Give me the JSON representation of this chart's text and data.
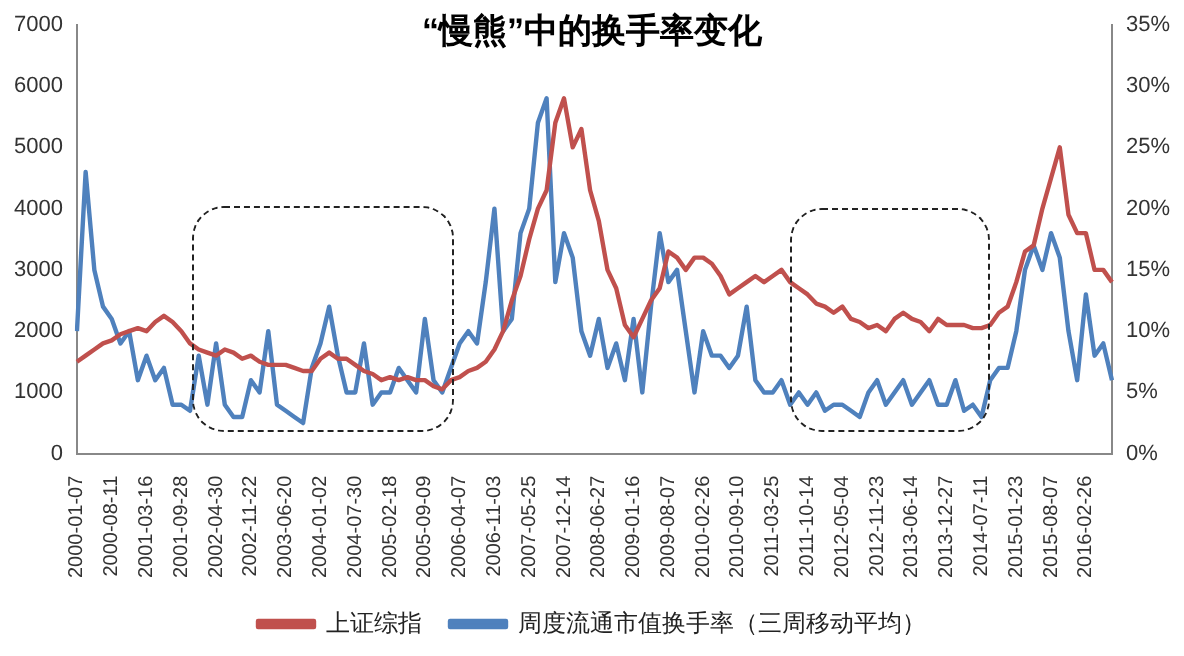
{
  "chart_data": {
    "type": "line",
    "title": "“慢熊”中的换手率变化",
    "categories": [
      "2000-01-07",
      null,
      null,
      null,
      "2000-08-11",
      null,
      null,
      null,
      "2001-03-16",
      null,
      null,
      null,
      "2001-09-28",
      null,
      null,
      null,
      "2002-04-30",
      null,
      null,
      null,
      "2002-11-22",
      null,
      null,
      null,
      "2003-06-20",
      null,
      null,
      null,
      "2004-01-02",
      null,
      null,
      null,
      "2004-07-30",
      null,
      null,
      null,
      "2005-02-18",
      null,
      null,
      null,
      "2005-09-09",
      null,
      null,
      null,
      "2006-04-07",
      null,
      null,
      null,
      "2006-11-03",
      null,
      null,
      null,
      "2007-05-25",
      null,
      null,
      null,
      "2007-12-14",
      null,
      null,
      null,
      "2008-06-27",
      null,
      null,
      null,
      "2009-01-16",
      null,
      null,
      null,
      "2009-08-07",
      null,
      null,
      null,
      "2010-02-26",
      null,
      null,
      null,
      "2010-09-10",
      null,
      null,
      null,
      "2011-03-25",
      null,
      null,
      null,
      "2011-10-14",
      null,
      null,
      null,
      "2012-05-04",
      null,
      null,
      null,
      "2012-11-23",
      null,
      null,
      null,
      "2013-06-14",
      null,
      null,
      null,
      "2013-12-27",
      null,
      null,
      null,
      "2014-07-11",
      null,
      null,
      null,
      "2015-01-23",
      null,
      null,
      null,
      "2015-08-07",
      null,
      null,
      null,
      "2016-02-26",
      null,
      null,
      null
    ],
    "series": [
      {
        "name": "上证综指",
        "color": "#c0504d",
        "values": [
          1500,
          1600,
          1700,
          1800,
          1850,
          1950,
          2000,
          2050,
          2000,
          2150,
          2250,
          2150,
          2000,
          1800,
          1700,
          1650,
          1600,
          1700,
          1650,
          1550,
          1600,
          1500,
          1450,
          1450,
          1450,
          1400,
          1350,
          1350,
          1550,
          1650,
          1550,
          1550,
          1450,
          1350,
          1300,
          1200,
          1250,
          1200,
          1250,
          1200,
          1200,
          1100,
          1050,
          1200,
          1250,
          1350,
          1400,
          1500,
          1700,
          2000,
          2500,
          2900,
          3500,
          4000,
          4300,
          5400,
          5800,
          5000,
          5300,
          4300,
          3800,
          3000,
          2700,
          2100,
          1900,
          2200,
          2500,
          2700,
          3300,
          3200,
          3000,
          3200,
          3200,
          3100,
          2900,
          2600,
          2700,
          2800,
          2900,
          2800,
          2900,
          3000,
          2800,
          2700,
          2600,
          2450,
          2400,
          2300,
          2400,
          2200,
          2150,
          2050,
          2100,
          2000,
          2200,
          2300,
          2200,
          2150,
          2000,
          2200,
          2100,
          2100,
          2100,
          2050,
          2050,
          2100,
          2300,
          2400,
          2800,
          3300,
          3400,
          4000,
          4500,
          5000,
          3900,
          3600,
          3600,
          3000,
          3000,
          2800
        ]
      },
      {
        "name": "周度流通市值换手率（三周移动平均）",
        "color": "#4f81bd",
        "axis": "y2",
        "values": [
          10,
          23,
          15,
          12,
          11,
          9,
          10,
          6,
          8,
          6,
          7,
          4,
          4,
          3.5,
          8,
          4,
          9,
          4,
          3,
          3,
          6,
          5,
          10,
          4,
          3.5,
          3,
          2.5,
          7,
          9,
          12,
          8,
          5,
          5,
          9,
          4,
          5,
          5,
          7,
          6,
          5,
          11,
          6,
          5,
          7,
          9,
          10,
          9,
          14,
          20,
          10,
          11,
          18,
          20,
          27,
          29,
          14,
          18,
          16,
          10,
          8,
          11,
          7,
          9,
          6,
          11,
          5,
          12,
          18,
          14,
          15,
          10,
          5,
          10,
          8,
          8,
          7,
          8,
          12,
          6,
          5,
          5,
          6,
          4,
          5,
          4,
          5,
          3.5,
          4,
          4,
          3.5,
          3,
          5,
          6,
          4,
          5,
          6,
          4,
          5,
          6,
          4,
          4,
          6,
          3.5,
          4,
          3,
          6,
          7,
          7,
          10,
          15,
          17,
          15,
          18,
          16,
          10,
          6,
          13,
          8,
          9,
          6
        ]
      }
    ],
    "ylim": [
      0,
      7000
    ],
    "yticks": [
      0,
      1000,
      2000,
      3000,
      4000,
      5000,
      6000,
      7000
    ],
    "y2lim": [
      0,
      35
    ],
    "y2ticks": [
      {
        "value": 0,
        "label": "0%"
      },
      {
        "value": 5,
        "label": "5%"
      },
      {
        "value": 10,
        "label": "10%"
      },
      {
        "value": 15,
        "label": "15%"
      },
      {
        "value": 20,
        "label": "20%"
      },
      {
        "value": 25,
        "label": "25%"
      },
      {
        "value": 30,
        "label": "30%"
      },
      {
        "value": 35,
        "label": "35%"
      }
    ],
    "grid": false,
    "legend": "bottom",
    "marker": "none",
    "line_style": "solid"
  }
}
